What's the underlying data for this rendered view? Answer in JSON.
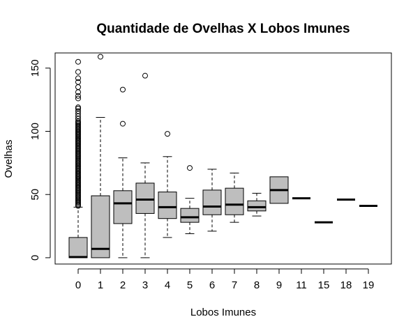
{
  "chart_data": {
    "type": "boxplot",
    "title": "Quantidade de Ovelhas X Lobos Imunes",
    "xlabel": "Lobos Imunes",
    "ylabel": "Ovelhas",
    "ylim": [
      -5,
      162
    ],
    "yticks": [
      0,
      50,
      100,
      150
    ],
    "categories": [
      "0",
      "1",
      "2",
      "3",
      "4",
      "5",
      "6",
      "7",
      "8",
      "9",
      "11",
      "15",
      "18",
      "19"
    ],
    "boxes": [
      {
        "min": 0,
        "q1": 0,
        "median": 0.5,
        "q3": 16,
        "max": 40,
        "outliers": [
          41,
          42,
          43,
          44,
          45,
          46,
          47,
          48,
          49,
          50,
          51,
          52,
          53,
          54,
          55,
          56,
          57,
          58,
          59,
          60,
          61,
          62,
          63,
          64,
          65,
          66,
          67,
          68,
          69,
          70,
          71,
          72,
          73,
          74,
          75,
          76,
          77,
          78,
          79,
          80,
          81,
          82,
          83,
          84,
          85,
          86,
          87,
          88,
          89,
          90,
          91,
          92,
          93,
          94,
          95,
          96,
          97,
          98,
          99,
          100,
          101,
          102,
          103,
          104,
          105,
          106,
          107,
          108,
          110,
          112,
          114,
          116,
          118,
          119,
          126,
          128,
          131,
          135,
          139,
          142,
          147,
          155
        ]
      },
      {
        "min": 0,
        "q1": 0,
        "median": 7,
        "q3": 49,
        "max": 111,
        "outliers": [
          159
        ]
      },
      {
        "min": 0,
        "q1": 27,
        "median": 43,
        "q3": 53,
        "max": 79,
        "outliers": [
          106,
          133
        ]
      },
      {
        "min": 0,
        "q1": 35,
        "median": 46,
        "q3": 59,
        "max": 75,
        "outliers": [
          144
        ]
      },
      {
        "min": 16,
        "q1": 31,
        "median": 40,
        "q3": 52,
        "max": 80,
        "outliers": [
          98
        ]
      },
      {
        "min": 19,
        "q1": 28,
        "median": 32,
        "q3": 39,
        "max": 47,
        "outliers": [
          71
        ]
      },
      {
        "min": 21,
        "q1": 34,
        "median": 40.5,
        "q3": 53.5,
        "max": 70,
        "outliers": []
      },
      {
        "min": 28,
        "q1": 34,
        "median": 42,
        "q3": 55,
        "max": 67,
        "outliers": []
      },
      {
        "min": 33,
        "q1": 37,
        "median": 40,
        "q3": 45,
        "max": 51,
        "outliers": []
      },
      {
        "min": 43,
        "q1": 43,
        "median": 53.5,
        "q3": 64,
        "max": 64,
        "outliers": []
      },
      {
        "min": 47,
        "q1": 47,
        "median": 47,
        "q3": 47,
        "max": 47,
        "outliers": []
      },
      {
        "min": 28,
        "q1": 28,
        "median": 28,
        "q3": 28,
        "max": 28,
        "outliers": []
      },
      {
        "min": 46,
        "q1": 46,
        "median": 46,
        "q3": 46,
        "max": 46,
        "outliers": []
      },
      {
        "min": 41,
        "q1": 41,
        "median": 41,
        "q3": 41,
        "max": 41,
        "outliers": []
      }
    ],
    "box_fill": "#bebebe",
    "grid": false,
    "legend": "none"
  }
}
